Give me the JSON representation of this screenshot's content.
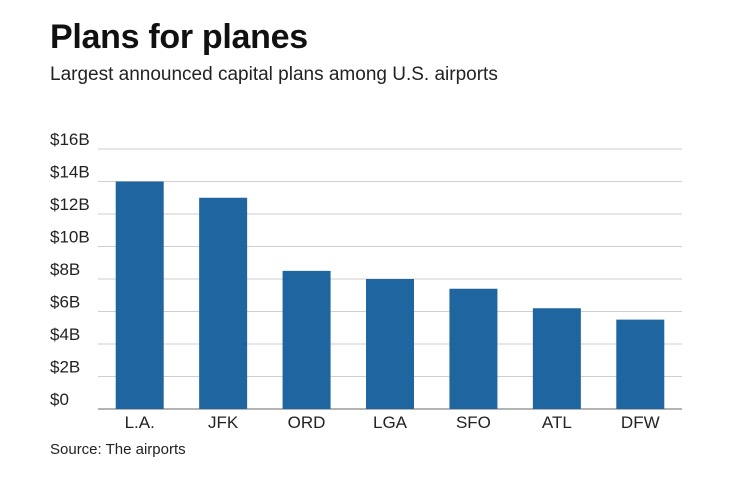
{
  "chart_data": {
    "type": "bar",
    "title": "Plans for planes",
    "subtitle": "Largest announced capital plans among U.S. airports",
    "categories": [
      "L.A.",
      "JFK",
      "ORD",
      "LGA",
      "SFO",
      "ATL",
      "DFW"
    ],
    "values": [
      14,
      13,
      8.5,
      8,
      7.4,
      6.2,
      5.5
    ],
    "unit": "billion USD",
    "ylim": [
      0,
      16
    ],
    "yticks": [
      0,
      2,
      4,
      6,
      8,
      10,
      12,
      14,
      16
    ],
    "ytick_labels": [
      "$0",
      "$2B",
      "$4B",
      "$6B",
      "$8B",
      "$10B",
      "$12B",
      "$14B",
      "$16B"
    ],
    "grid": true,
    "bar_color": "#1f66a0",
    "source": "Source: The airports"
  }
}
